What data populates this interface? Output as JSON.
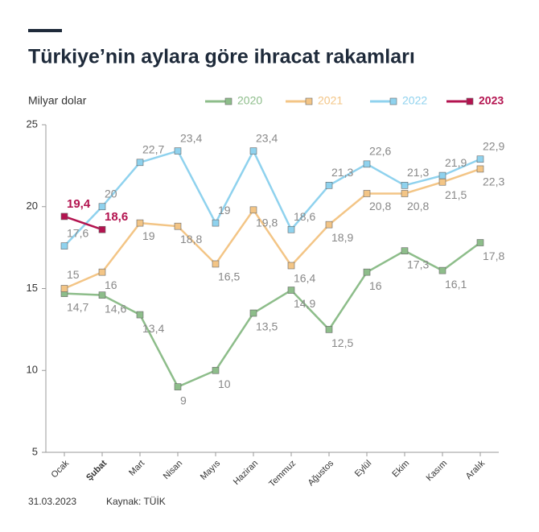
{
  "chart_data": {
    "type": "line",
    "title": "Türkiye’nin aylara göre ihracat rakamları",
    "y_label": "Milyar dolar",
    "date": "31.03.2023",
    "source": "Kaynak: TÜİK",
    "categories": [
      "Ocak",
      "Şubat",
      "Mart",
      "Nisan",
      "Mayıs",
      "Haziran",
      "Temmuz",
      "Ağustos",
      "Eylül",
      "Ekim",
      "Kasım",
      "Aralık"
    ],
    "series": [
      {
        "name": "2020",
        "color": "#8dbd8a",
        "values": [
          14.7,
          14.6,
          13.4,
          9,
          10,
          13.5,
          14.9,
          12.5,
          16,
          17.3,
          16.1,
          17.8
        ],
        "value_labels": [
          "14,7",
          "14,6",
          "13,4",
          "9",
          "10",
          "13,5",
          "14,9",
          "12,5",
          "16",
          "17,3",
          "16,1",
          "17,8"
        ]
      },
      {
        "name": "2021",
        "color": "#f3c586",
        "values": [
          15,
          16,
          19,
          18.8,
          16.5,
          19.8,
          16.4,
          18.9,
          20.8,
          20.8,
          21.5,
          22.3
        ],
        "value_labels": [
          "15",
          "16",
          "19",
          "18,8",
          "16,5",
          "19,8",
          "16,4",
          "18,9",
          "20,8",
          "20,8",
          "21,5",
          "22,3"
        ]
      },
      {
        "name": "2022",
        "color": "#8fd2ee",
        "values": [
          17.6,
          20,
          22.7,
          23.4,
          19,
          23.4,
          18.6,
          21.3,
          22.6,
          21.3,
          21.9,
          22.9
        ],
        "value_labels": [
          "17,6",
          "20",
          "22,7",
          "23,4",
          "19",
          "23,4",
          "18,6",
          "21,3",
          "22,6",
          "21,3",
          "21,9",
          "22,9"
        ]
      },
      {
        "name": "2023",
        "color": "#b3134f",
        "values": [
          19.4,
          18.6,
          null,
          null,
          null,
          null,
          null,
          null,
          null,
          null,
          null,
          null
        ],
        "value_labels": [
          "19,4",
          "18,6",
          null,
          null,
          null,
          null,
          null,
          null,
          null,
          null,
          null,
          null
        ]
      }
    ],
    "ylim": [
      5,
      25
    ],
    "yticks": [
      5,
      10,
      15,
      20,
      25
    ]
  }
}
